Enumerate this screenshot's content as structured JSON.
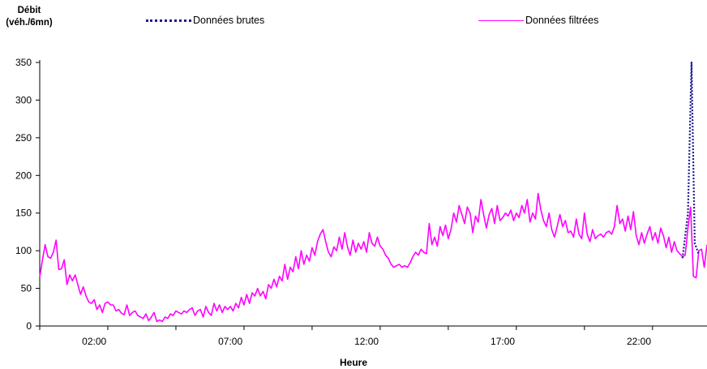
{
  "chart_data": {
    "type": "line",
    "ylabel": [
      "Débit",
      "(véh./6mn)"
    ],
    "xlabel": "Heure",
    "ylim": [
      0,
      350
    ],
    "yticks": [
      0,
      50,
      100,
      150,
      200,
      250,
      300,
      350
    ],
    "xlim": [
      0,
      24.5
    ],
    "xticks": [
      "02:00",
      "07:00",
      "12:00",
      "17:00",
      "22:00"
    ],
    "xtick_hours": [
      2,
      7,
      12,
      17,
      22
    ],
    "grid": false,
    "legend_position": "top",
    "series": [
      {
        "name": "Données brutes",
        "style": "dotted",
        "color": "#1a1a8c",
        "points": [
          [
            23.6,
            90
          ],
          [
            23.8,
            150
          ],
          [
            23.93,
            350
          ],
          [
            24.05,
            110
          ],
          [
            24.2,
            95
          ]
        ]
      },
      {
        "name": "Données filtrées",
        "style": "solid",
        "color": "#ff00ff",
        "points": [
          [
            0.0,
            65
          ],
          [
            0.1,
            88
          ],
          [
            0.2,
            108
          ],
          [
            0.3,
            92
          ],
          [
            0.4,
            90
          ],
          [
            0.5,
            98
          ],
          [
            0.6,
            114
          ],
          [
            0.7,
            75
          ],
          [
            0.8,
            76
          ],
          [
            0.9,
            88
          ],
          [
            1.0,
            55
          ],
          [
            1.1,
            68
          ],
          [
            1.2,
            60
          ],
          [
            1.3,
            68
          ],
          [
            1.4,
            55
          ],
          [
            1.5,
            42
          ],
          [
            1.6,
            52
          ],
          [
            1.7,
            40
          ],
          [
            1.8,
            32
          ],
          [
            1.9,
            30
          ],
          [
            2.0,
            35
          ],
          [
            2.1,
            22
          ],
          [
            2.2,
            28
          ],
          [
            2.3,
            18
          ],
          [
            2.4,
            30
          ],
          [
            2.5,
            32
          ],
          [
            2.6,
            28
          ],
          [
            2.7,
            28
          ],
          [
            2.8,
            20
          ],
          [
            2.9,
            22
          ],
          [
            3.0,
            17
          ],
          [
            3.1,
            15
          ],
          [
            3.2,
            28
          ],
          [
            3.3,
            14
          ],
          [
            3.4,
            18
          ],
          [
            3.5,
            20
          ],
          [
            3.6,
            14
          ],
          [
            3.7,
            12
          ],
          [
            3.8,
            10
          ],
          [
            3.9,
            16
          ],
          [
            4.0,
            7
          ],
          [
            4.1,
            12
          ],
          [
            4.2,
            18
          ],
          [
            4.3,
            6
          ],
          [
            4.4,
            8
          ],
          [
            4.5,
            6
          ],
          [
            4.6,
            12
          ],
          [
            4.7,
            10
          ],
          [
            4.8,
            16
          ],
          [
            4.9,
            14
          ],
          [
            5.0,
            20
          ],
          [
            5.1,
            18
          ],
          [
            5.2,
            16
          ],
          [
            5.3,
            20
          ],
          [
            5.4,
            18
          ],
          [
            5.5,
            22
          ],
          [
            5.6,
            24
          ],
          [
            5.7,
            14
          ],
          [
            5.8,
            20
          ],
          [
            5.9,
            22
          ],
          [
            6.0,
            12
          ],
          [
            6.1,
            26
          ],
          [
            6.2,
            18
          ],
          [
            6.3,
            14
          ],
          [
            6.4,
            30
          ],
          [
            6.5,
            20
          ],
          [
            6.6,
            28
          ],
          [
            6.7,
            18
          ],
          [
            6.8,
            26
          ],
          [
            6.9,
            22
          ],
          [
            7.0,
            26
          ],
          [
            7.1,
            20
          ],
          [
            7.2,
            30
          ],
          [
            7.3,
            24
          ],
          [
            7.4,
            38
          ],
          [
            7.5,
            28
          ],
          [
            7.6,
            42
          ],
          [
            7.7,
            30
          ],
          [
            7.8,
            44
          ],
          [
            7.9,
            40
          ],
          [
            8.0,
            50
          ],
          [
            8.1,
            40
          ],
          [
            8.2,
            46
          ],
          [
            8.3,
            36
          ],
          [
            8.4,
            55
          ],
          [
            8.5,
            50
          ],
          [
            8.6,
            62
          ],
          [
            8.7,
            52
          ],
          [
            8.8,
            66
          ],
          [
            8.9,
            60
          ],
          [
            9.0,
            82
          ],
          [
            9.1,
            62
          ],
          [
            9.2,
            78
          ],
          [
            9.3,
            72
          ],
          [
            9.4,
            92
          ],
          [
            9.5,
            76
          ],
          [
            9.6,
            100
          ],
          [
            9.7,
            82
          ],
          [
            9.8,
            94
          ],
          [
            9.9,
            86
          ],
          [
            10.0,
            104
          ],
          [
            10.1,
            94
          ],
          [
            10.2,
            112
          ],
          [
            10.3,
            122
          ],
          [
            10.4,
            128
          ],
          [
            10.5,
            112
          ],
          [
            10.6,
            98
          ],
          [
            10.7,
            92
          ],
          [
            10.8,
            105
          ],
          [
            10.9,
            100
          ],
          [
            11.0,
            118
          ],
          [
            11.1,
            102
          ],
          [
            11.2,
            124
          ],
          [
            11.3,
            105
          ],
          [
            11.4,
            94
          ],
          [
            11.5,
            114
          ],
          [
            11.6,
            98
          ],
          [
            11.7,
            110
          ],
          [
            11.8,
            102
          ],
          [
            11.9,
            112
          ],
          [
            12.0,
            98
          ],
          [
            12.1,
            124
          ],
          [
            12.2,
            110
          ],
          [
            12.3,
            106
          ],
          [
            12.4,
            118
          ],
          [
            12.5,
            106
          ],
          [
            12.6,
            102
          ],
          [
            12.7,
            94
          ],
          [
            12.8,
            90
          ],
          [
            12.9,
            82
          ],
          [
            13.0,
            78
          ],
          [
            13.1,
            80
          ],
          [
            13.2,
            82
          ],
          [
            13.3,
            78
          ],
          [
            13.4,
            80
          ],
          [
            13.5,
            78
          ],
          [
            13.6,
            84
          ],
          [
            13.7,
            92
          ],
          [
            13.8,
            98
          ],
          [
            13.9,
            94
          ],
          [
            14.0,
            102
          ],
          [
            14.1,
            98
          ],
          [
            14.2,
            96
          ],
          [
            14.3,
            136
          ],
          [
            14.4,
            108
          ],
          [
            14.5,
            118
          ],
          [
            14.6,
            106
          ],
          [
            14.7,
            132
          ],
          [
            14.8,
            120
          ],
          [
            14.9,
            134
          ],
          [
            15.0,
            116
          ],
          [
            15.1,
            128
          ],
          [
            15.2,
            150
          ],
          [
            15.3,
            138
          ],
          [
            15.4,
            160
          ],
          [
            15.5,
            148
          ],
          [
            15.6,
            136
          ],
          [
            15.7,
            158
          ],
          [
            15.8,
            150
          ],
          [
            15.9,
            124
          ],
          [
            16.0,
            146
          ],
          [
            16.1,
            138
          ],
          [
            16.2,
            168
          ],
          [
            16.3,
            148
          ],
          [
            16.4,
            130
          ],
          [
            16.5,
            148
          ],
          [
            16.6,
            156
          ],
          [
            16.7,
            136
          ],
          [
            16.8,
            160
          ],
          [
            16.9,
            140
          ],
          [
            17.0,
            144
          ],
          [
            17.1,
            150
          ],
          [
            17.2,
            146
          ],
          [
            17.3,
            154
          ],
          [
            17.4,
            140
          ],
          [
            17.5,
            150
          ],
          [
            17.6,
            144
          ],
          [
            17.7,
            160
          ],
          [
            17.8,
            150
          ],
          [
            17.9,
            168
          ],
          [
            18.0,
            138
          ],
          [
            18.1,
            150
          ],
          [
            18.2,
            142
          ],
          [
            18.3,
            176
          ],
          [
            18.4,
            154
          ],
          [
            18.5,
            140
          ],
          [
            18.6,
            132
          ],
          [
            18.7,
            150
          ],
          [
            18.8,
            128
          ],
          [
            18.9,
            118
          ],
          [
            19.0,
            132
          ],
          [
            19.1,
            148
          ],
          [
            19.2,
            132
          ],
          [
            19.3,
            140
          ],
          [
            19.4,
            124
          ],
          [
            19.5,
            126
          ],
          [
            19.6,
            118
          ],
          [
            19.7,
            142
          ],
          [
            19.8,
            122
          ],
          [
            19.9,
            116
          ],
          [
            20.0,
            150
          ],
          [
            20.1,
            122
          ],
          [
            20.2,
            112
          ],
          [
            20.3,
            128
          ],
          [
            20.4,
            116
          ],
          [
            20.5,
            120
          ],
          [
            20.6,
            122
          ],
          [
            20.7,
            118
          ],
          [
            20.8,
            124
          ],
          [
            20.9,
            126
          ],
          [
            21.0,
            122
          ],
          [
            21.1,
            132
          ],
          [
            21.2,
            160
          ],
          [
            21.3,
            136
          ],
          [
            21.4,
            142
          ],
          [
            21.5,
            126
          ],
          [
            21.6,
            146
          ],
          [
            21.7,
            128
          ],
          [
            21.8,
            152
          ],
          [
            21.9,
            120
          ],
          [
            22.0,
            108
          ],
          [
            22.1,
            124
          ],
          [
            22.2,
            110
          ],
          [
            22.3,
            122
          ],
          [
            22.4,
            132
          ],
          [
            22.5,
            114
          ],
          [
            22.6,
            124
          ],
          [
            22.7,
            110
          ],
          [
            22.8,
            130
          ],
          [
            22.9,
            120
          ],
          [
            23.0,
            104
          ],
          [
            23.1,
            118
          ],
          [
            23.2,
            98
          ],
          [
            23.3,
            112
          ],
          [
            23.4,
            100
          ],
          [
            23.5,
            96
          ],
          [
            23.6,
            92
          ],
          [
            23.7,
            94
          ],
          [
            23.8,
            130
          ],
          [
            23.9,
            158
          ],
          [
            24.0,
            66
          ],
          [
            24.1,
            64
          ],
          [
            24.2,
            100
          ],
          [
            24.3,
            102
          ],
          [
            24.4,
            78
          ],
          [
            24.5,
            108
          ]
        ]
      }
    ]
  }
}
